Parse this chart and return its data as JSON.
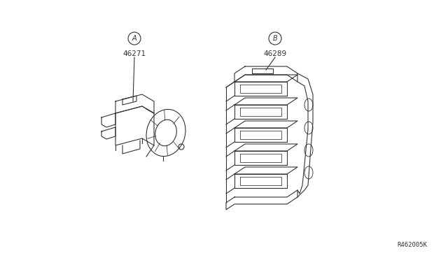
{
  "bg_color": "#ffffff",
  "line_color": "#333333",
  "line_width": 0.8,
  "ref_number": "R462005K",
  "label_A": "A",
  "label_B": "B",
  "part_A": "46271",
  "part_B": "46289",
  "label_fontsize": 7.5,
  "ref_fontsize": 6.5,
  "circle_label_r": 0.018
}
